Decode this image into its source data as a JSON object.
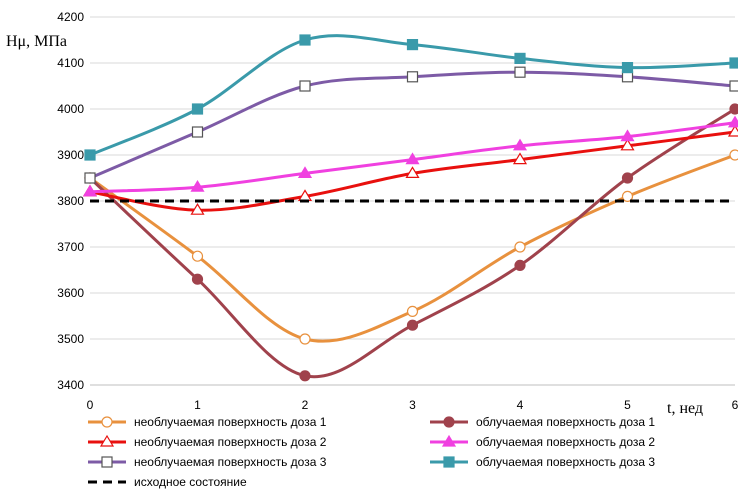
{
  "chart_data": {
    "type": "line",
    "title": "",
    "xlabel": "t, нед",
    "ylabel": "Hμ, МПа",
    "x": [
      0,
      1,
      2,
      3,
      4,
      5,
      6
    ],
    "xlim": [
      0,
      6
    ],
    "ylim": [
      3400,
      4200
    ],
    "y_ticks": [
      3400,
      3500,
      3600,
      3700,
      3800,
      3900,
      4000,
      4100,
      4200
    ],
    "x_ticks": [
      0,
      1,
      2,
      3,
      4,
      5,
      6
    ],
    "grid": "horizontal",
    "legend_position": "bottom",
    "series": [
      {
        "name": "необлучаемая поверхность доза 1",
        "color": "#E8913E",
        "marker": "circle-open",
        "values": [
          3850,
          3680,
          3500,
          3560,
          3700,
          3810,
          3900
        ]
      },
      {
        "name": "облучаемая поверхность доза 1",
        "color": "#A0424C",
        "marker": "circle-filled",
        "values": [
          3850,
          3630,
          3420,
          3530,
          3660,
          3850,
          4000
        ]
      },
      {
        "name": "необлучаемая поверхность доза 2",
        "color": "#E8100E",
        "marker": "triangle-open",
        "values": [
          3820,
          3780,
          3810,
          3860,
          3890,
          3920,
          3950
        ]
      },
      {
        "name": "облучаемая поверхность доза 2",
        "color": "#F040E0",
        "marker": "triangle-filled",
        "values": [
          3820,
          3830,
          3860,
          3890,
          3920,
          3940,
          3970
        ]
      },
      {
        "name": "необлучаемая поверхность доза 3",
        "color": "#7D5BA6",
        "marker": "square-open",
        "values": [
          3850,
          3950,
          4050,
          4070,
          4080,
          4070,
          4050
        ]
      },
      {
        "name": "облучаемая поверхность доза 3",
        "color": "#3A9AAA",
        "marker": "square-filled",
        "values": [
          3900,
          4000,
          4150,
          4140,
          4110,
          4090,
          4100
        ]
      },
      {
        "name": "исходное состояние",
        "color": "#000000",
        "marker": "none",
        "dashed": true,
        "values": [
          3800,
          3800,
          3800,
          3800,
          3800,
          3800,
          3800
        ]
      }
    ]
  }
}
